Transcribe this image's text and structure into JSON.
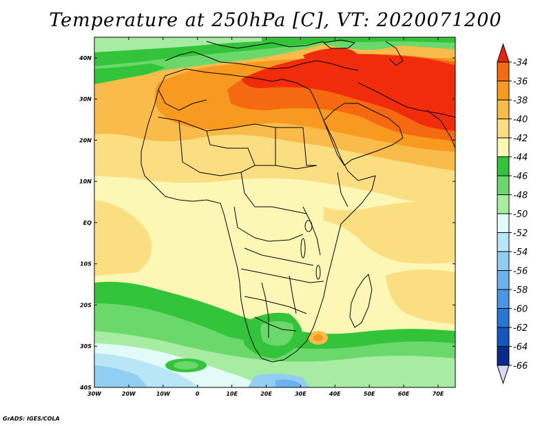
{
  "title": "Temperature at 250hPa [C], VT: 2020071200",
  "credit": "GrADS: IGES/COLA",
  "map": {
    "lat_labels": [
      "40N",
      "30N",
      "20N",
      "10N",
      "EQ",
      "10S",
      "20S",
      "30S",
      "40S"
    ],
    "lat_values": [
      40,
      30,
      20,
      10,
      0,
      -10,
      -20,
      -30,
      -40
    ],
    "lon_labels": [
      "30W",
      "20W",
      "10W",
      "0",
      "10E",
      "20E",
      "30E",
      "40E",
      "50E",
      "60E",
      "70E"
    ],
    "lon_values": [
      -30,
      -20,
      -10,
      0,
      10,
      20,
      30,
      40,
      50,
      60,
      70
    ],
    "lon_range": [
      -30,
      75
    ],
    "lat_range": [
      -40,
      45
    ]
  },
  "colorbar": {
    "labels": [
      "-34",
      "-36",
      "-38",
      "-40",
      "-42",
      "-44",
      "-46",
      "-48",
      "-50",
      "-52",
      "-54",
      "-56",
      "-58",
      "-60",
      "-62",
      "-64",
      "-66"
    ],
    "colors": [
      "#f02c0c",
      "#f56a10",
      "#f79a1f",
      "#f9bb4a",
      "#fbdd82",
      "#fdf7b6",
      "#33c43c",
      "#6ad86b",
      "#a8eba3",
      "#e2fbf8",
      "#b8e6f6",
      "#92cdf2",
      "#6cb2ee",
      "#4896e4",
      "#2778d6",
      "#1557c2",
      "#0a2a8c"
    ],
    "top_arrow_color": "#e8240a",
    "bottom_arrow_color": "#d9d6f6"
  }
}
